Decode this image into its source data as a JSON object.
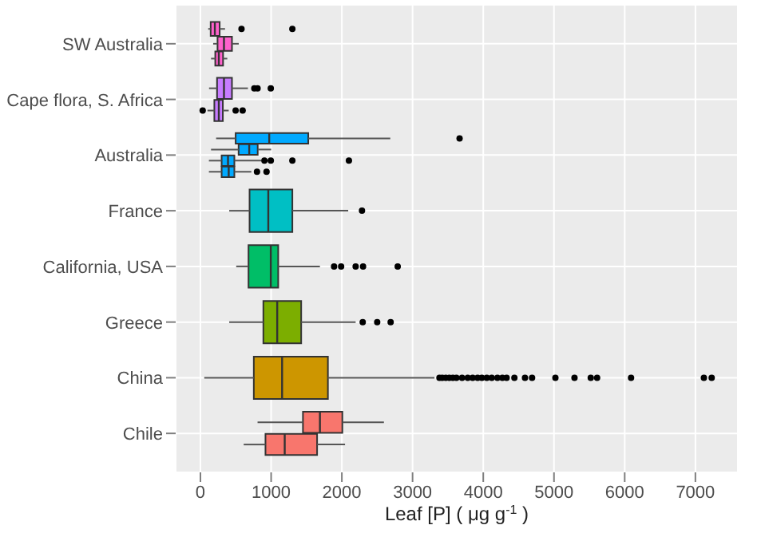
{
  "chart_data": {
    "type": "box",
    "orientation": "horizontal",
    "xlabel": "Leaf [P] ( μg g$^{-1}$ )",
    "categories": [
      "SW Australia",
      "Cape flora, S. Africa",
      "Australia",
      "France",
      "California, USA",
      "Greece",
      "China",
      "Chile"
    ],
    "series": [
      {
        "colors": [
          "#ff61cc",
          "#c77cff",
          "#00a9ff",
          "#00bfc4",
          "#00be67",
          "#7cae00",
          "#cd9600",
          "#f8766d"
        ],
        "boxes": [
          {
            "low": 110,
            "q1": 145,
            "median": 204,
            "q3": 272,
            "high": 348,
            "outliers": [
              581,
              1300
            ]
          },
          {
            "low": 122,
            "q1": 235,
            "median": 333,
            "q3": 446,
            "high": 672,
            "outliers": [
              762,
              808,
              995
            ]
          },
          {
            "low": 222,
            "q1": 498,
            "median": 973,
            "q3": 1525,
            "high": 2685,
            "outliers": [
              3665
            ]
          },
          {
            "low": 407,
            "q1": 695,
            "median": 960,
            "q3": 1300,
            "high": 2090,
            "outliers": [
              2285
            ]
          },
          {
            "low": 506,
            "q1": 680,
            "median": 995,
            "q3": 1100,
            "high": 1690,
            "outliers": [
              1890,
              1990,
              2195,
              2300,
              2790
            ]
          },
          {
            "low": 407,
            "q1": 890,
            "median": 1086,
            "q3": 1425,
            "high": 2195,
            "outliers": [
              2295,
              2500,
              2690
            ]
          },
          {
            "low": 54,
            "q1": 755,
            "median": 1155,
            "q3": 1803,
            "high": 3310,
            "outliers": [
              3380,
              3420,
              3470,
              3520,
              3570,
              3620,
              3700,
              3780,
              3850,
              3920,
              3980,
              4050,
              4120,
              4200,
              4270,
              4330,
              4440,
              4590,
              4690,
              5020,
              5290,
              5520,
              5610,
              6090,
              7120,
              7230
            ]
          },
          {
            "low": 808,
            "q1": 1450,
            "median": 1690,
            "q3": 2007,
            "high": 2595
          }
        ]
      },
      {
        "colors": [
          "#ff61cc",
          "#c77cff",
          "#00a9ff",
          null,
          null,
          null,
          null,
          "#f8766d"
        ],
        "boxes": [
          {
            "low": 180,
            "q1": 242,
            "median": 333,
            "q3": 446,
            "high": 543
          },
          {
            "low": 100,
            "q1": 197,
            "median": 260,
            "q3": 317,
            "high": 400,
            "outliers": [
              32,
              498,
              597
            ]
          },
          {
            "low": 150,
            "q1": 540,
            "median": 690,
            "q3": 810,
            "high": 1000
          },
          null,
          null,
          null,
          null,
          {
            "low": 612,
            "q1": 920,
            "median": 1192,
            "q3": 1650,
            "high": 2045
          }
        ]
      },
      {
        "colors": [
          "#ff61cc",
          null,
          "#00a9ff",
          null,
          null,
          null,
          null,
          null
        ],
        "boxes": [
          {
            "low": 150,
            "q1": 210,
            "median": 260,
            "q3": 320,
            "high": 380
          },
          null,
          {
            "low": 120,
            "q1": 300,
            "median": 390,
            "q3": 480,
            "high": 860,
            "outliers": [
              905,
              995,
              1300,
              2100
            ]
          },
          null,
          null,
          null,
          null,
          null
        ]
      },
      {
        "colors": [
          null,
          null,
          "#00a9ff",
          null,
          null,
          null,
          null,
          null
        ],
        "boxes": [
          null,
          null,
          {
            "low": 120,
            "q1": 300,
            "median": 400,
            "q3": 480,
            "high": 720,
            "outliers": [
              800,
              935
            ]
          },
          null,
          null,
          null,
          null,
          null
        ]
      }
    ],
    "xlim": [
      -350,
      7600
    ],
    "xticks": [
      0,
      1000,
      2000,
      3000,
      4000,
      5000,
      6000,
      7000
    ],
    "grid": true
  }
}
